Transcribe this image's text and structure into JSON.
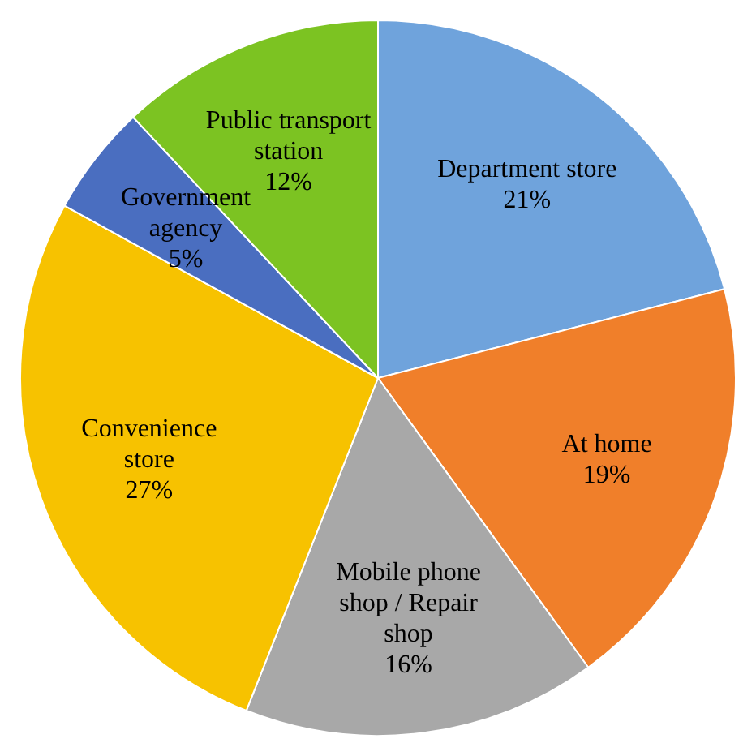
{
  "chart_data": {
    "type": "pie",
    "categories": [
      "Department store",
      "At home",
      "Mobile phone shop / Repair shop",
      "Convenience store",
      "Government agency",
      "Public transport station"
    ],
    "values": [
      21,
      19,
      16,
      27,
      5,
      12
    ],
    "colors": [
      "#6fa3dc",
      "#f07f2a",
      "#a8a8a8",
      "#f7c200",
      "#4a6ec0",
      "#7cc322"
    ],
    "value_labels": [
      "21%",
      "19%",
      "16%",
      "27%",
      "5%",
      "12%"
    ],
    "legend": false
  }
}
